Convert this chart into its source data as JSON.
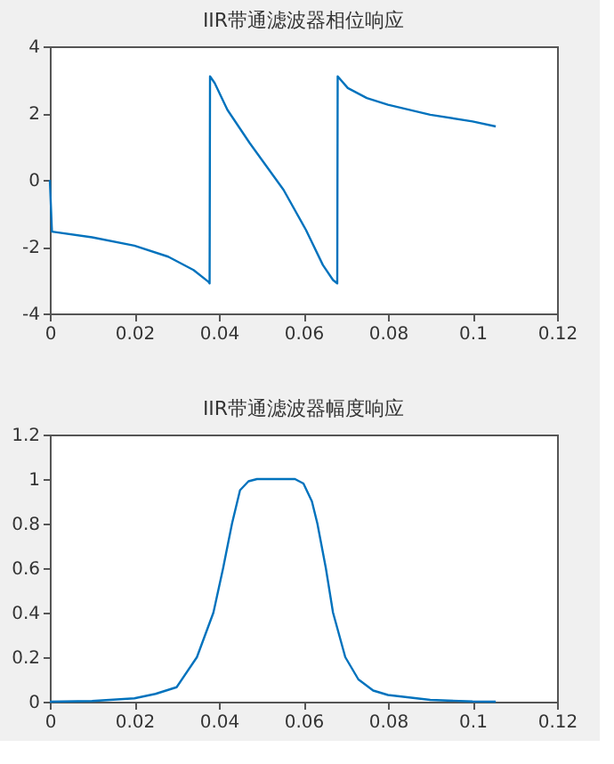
{
  "chart_data": [
    {
      "type": "line",
      "title": "IIR带通滤波器相位响应",
      "xlim": [
        0,
        0.12
      ],
      "xticks": [
        0,
        0.02,
        0.04,
        0.06,
        0.08,
        0.1,
        0.12
      ],
      "ylim": [
        -4,
        4
      ],
      "yticks": [
        -4,
        -2,
        0,
        2,
        4
      ],
      "grid": false,
      "marker": "none",
      "line_style": "solid",
      "series": [
        {
          "color": "#0072bd",
          "x": [
            0,
            0.0005,
            0.01,
            0.02,
            0.028,
            0.034,
            0.0375,
            0.0378,
            0.0379,
            0.039,
            0.042,
            0.0473,
            0.0553,
            0.0606,
            0.0646,
            0.067,
            0.068,
            0.0681,
            0.0705,
            0.075,
            0.08,
            0.09,
            0.1,
            0.1055
          ],
          "values": [
            0,
            -1.55,
            -1.72,
            -1.97,
            -2.3,
            -2.7,
            -3.05,
            -3.1,
            3.1,
            2.9,
            2.1,
            1.1,
            -0.3,
            -1.5,
            -2.55,
            -3.0,
            -3.1,
            3.1,
            2.75,
            2.45,
            2.25,
            1.95,
            1.75,
            1.6
          ]
        }
      ]
    },
    {
      "type": "line",
      "title": "IIR带通滤波器幅度响应",
      "xlim": [
        0,
        0.12
      ],
      "xticks": [
        0,
        0.02,
        0.04,
        0.06,
        0.08,
        0.1,
        0.12
      ],
      "ylim": [
        0,
        1.2
      ],
      "yticks": [
        0,
        0.2,
        0.4,
        0.6,
        0.8,
        1,
        1.2
      ],
      "grid": false,
      "marker": "none",
      "line_style": "solid",
      "series": [
        {
          "color": "#0072bd",
          "x": [
            0,
            0.01,
            0.02,
            0.025,
            0.03,
            0.0348,
            0.0387,
            0.041,
            0.0431,
            0.045,
            0.047,
            0.049,
            0.058,
            0.06,
            0.062,
            0.0633,
            0.0653,
            0.067,
            0.0699,
            0.073,
            0.0765,
            0.08,
            0.09,
            0.1,
            0.1055
          ],
          "values": [
            0,
            0.003,
            0.015,
            0.035,
            0.065,
            0.2,
            0.4,
            0.6,
            0.8,
            0.95,
            0.99,
            1.0,
            1.0,
            0.98,
            0.9,
            0.8,
            0.6,
            0.4,
            0.2,
            0.1,
            0.05,
            0.03,
            0.008,
            0.001,
            0
          ]
        }
      ]
    }
  ]
}
